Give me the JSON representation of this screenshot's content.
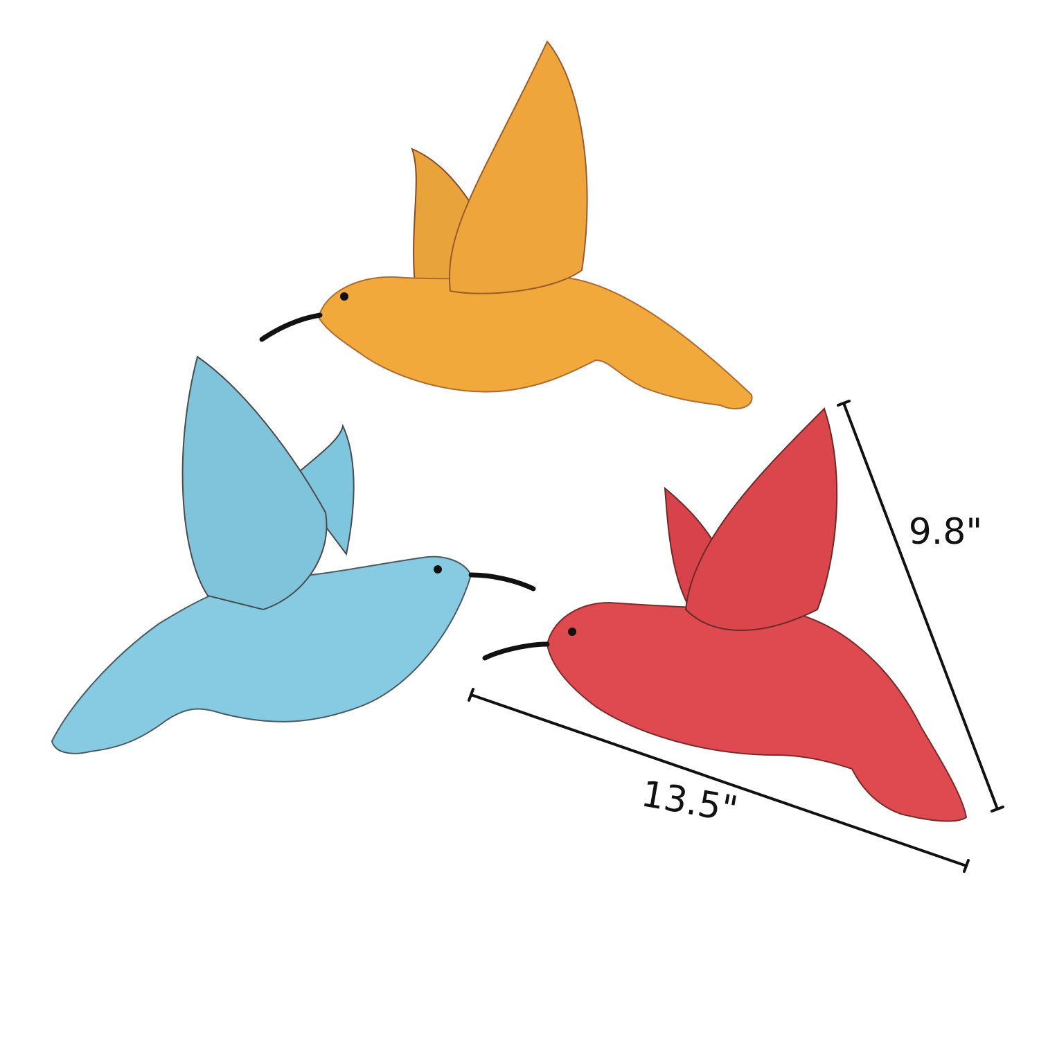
{
  "dimensions": {
    "height": "9.8\"",
    "width": "13.5\""
  }
}
